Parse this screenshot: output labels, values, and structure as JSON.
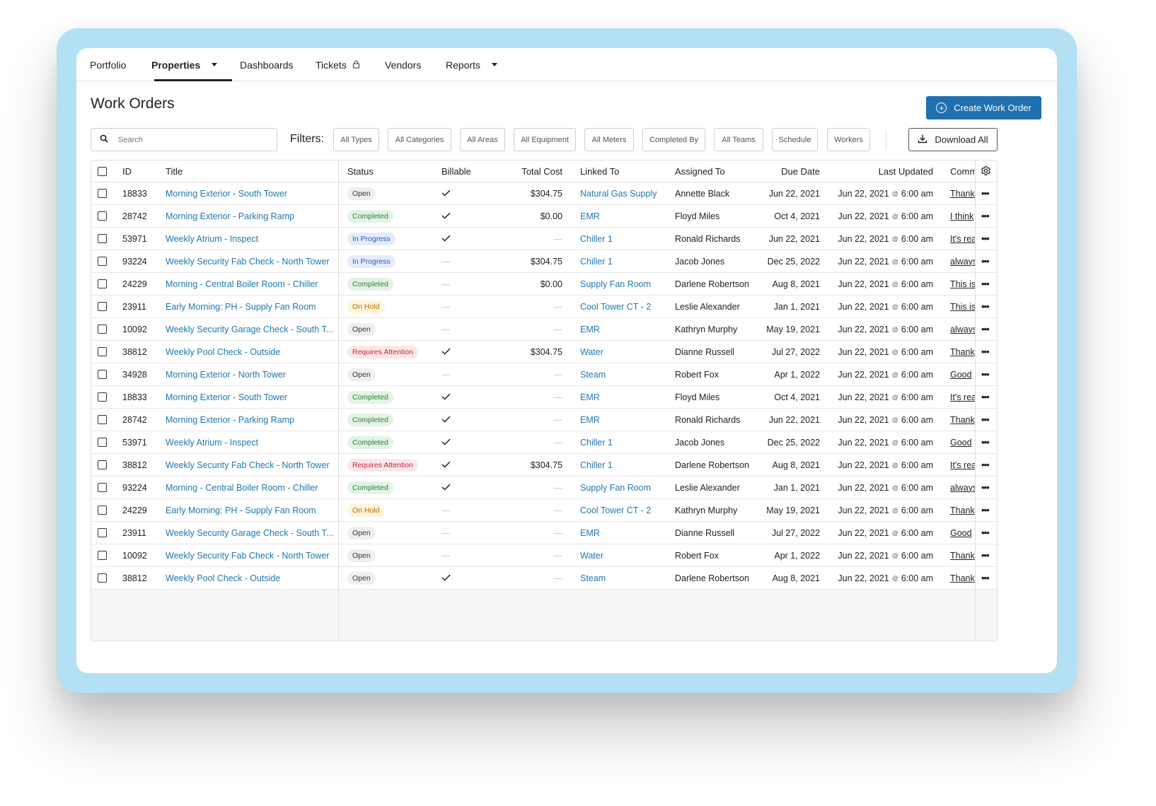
{
  "nav": {
    "items": [
      {
        "label": "Portfolio"
      },
      {
        "label": "Properties"
      },
      {
        "label": "Dashboards"
      },
      {
        "label": "Tickets"
      },
      {
        "label": "Vendors"
      },
      {
        "label": "Reports"
      }
    ],
    "active": "Properties"
  },
  "header": {
    "title": "Work Orders",
    "create_label": "Create Work Order"
  },
  "search": {
    "placeholder": "Search",
    "value": ""
  },
  "filters": {
    "label": "Filters:",
    "items": [
      "All Types",
      "All Categories",
      "All Areas",
      "All Equipment",
      "All Meters",
      "Completed By",
      "All Teams",
      "Schedule",
      "Workers"
    ],
    "download_label": "Download All"
  },
  "table": {
    "columns": [
      "ID",
      "Title",
      "Status",
      "Billable",
      "Total Cost",
      "Linked To",
      "Assigned To",
      "Due Date",
      "Last Updated",
      "Comm"
    ],
    "updated_at_symbol": "@",
    "rows": [
      {
        "id": "18833",
        "title": "Morning Exterior - South Tower",
        "status": "Open",
        "billable": true,
        "cost": "$304.75",
        "linked": "Natural Gas Supply",
        "assigned": "Annette Black",
        "due": "Jun 22, 2021",
        "upd_date": "Jun 22, 2021",
        "upd_time": "6:00 am",
        "comment": "Thank"
      },
      {
        "id": "28742",
        "title": "Morning Exterior - Parking Ramp",
        "status": "Completed",
        "billable": true,
        "cost": "$0.00",
        "linked": "EMR",
        "assigned": "Floyd Miles",
        "due": "Oct 4, 2021",
        "upd_date": "Jun 22, 2021",
        "upd_time": "6:00 am",
        "comment": "I think"
      },
      {
        "id": "53971",
        "title": "Weekly Atrium - Inspect",
        "status": "In Progress",
        "billable": true,
        "cost": "",
        "linked": "Chiller 1",
        "assigned": "Ronald Richards",
        "due": "Jun 22, 2021",
        "upd_date": "Jun 22, 2021",
        "upd_time": "6:00 am",
        "comment": "It's rea"
      },
      {
        "id": "93224",
        "title": "Weekly Security Fab Check - North Tower",
        "status": "In Progress",
        "billable": false,
        "cost": "$304.75",
        "linked": "Chiller 1",
        "assigned": "Jacob Jones",
        "due": "Dec 25, 2022",
        "upd_date": "Jun 22, 2021",
        "upd_time": "6:00 am",
        "comment": "always"
      },
      {
        "id": "24229",
        "title": "Morning - Central Boiler Room - Chiller",
        "status": "Completed",
        "billable": false,
        "cost": "$0.00",
        "linked": "Supply Fan Room",
        "assigned": "Darlene Robertson",
        "due": "Aug 8, 2021",
        "upd_date": "Jun 22, 2021",
        "upd_time": "6:00 am",
        "comment": "This is"
      },
      {
        "id": "23911",
        "title": "Early Morning: PH - Supply Fan Room",
        "status": "On Hold",
        "billable": false,
        "cost": "",
        "linked": "Cool Tower CT - 2",
        "assigned": "Leslie Alexander",
        "due": "Jan 1, 2021",
        "upd_date": "Jun 22, 2021",
        "upd_time": "6:00 am",
        "comment": "This is"
      },
      {
        "id": "10092",
        "title": "Weekly Security Garage Check - South T...",
        "status": "Open",
        "billable": false,
        "cost": "",
        "linked": "EMR",
        "assigned": "Kathryn Murphy",
        "due": "May 19, 2021",
        "upd_date": "Jun 22, 2021",
        "upd_time": "6:00 am",
        "comment": "always"
      },
      {
        "id": "38812",
        "title": "Weekly Pool Check - Outside",
        "status": "Requires Attention",
        "billable": true,
        "cost": "$304.75",
        "linked": "Water",
        "assigned": "Dianne Russell",
        "due": "Jul 27, 2022",
        "upd_date": "Jun 22, 2021",
        "upd_time": "6:00 am",
        "comment": "Thank"
      },
      {
        "id": "34928",
        "title": "Morning Exterior - North Tower",
        "status": "Open",
        "billable": false,
        "cost": "",
        "linked": "Steam",
        "assigned": "Robert Fox",
        "due": "Apr 1, 2022",
        "upd_date": "Jun 22, 2021",
        "upd_time": "6:00 am",
        "comment": "Good"
      },
      {
        "id": "18833",
        "title": "Morning Exterior - South Tower",
        "status": "Completed",
        "billable": true,
        "cost": "",
        "linked": "EMR",
        "assigned": "Floyd Miles",
        "due": "Oct 4, 2021",
        "upd_date": "Jun 22, 2021",
        "upd_time": "6:00 am",
        "comment": "It's rea"
      },
      {
        "id": "28742",
        "title": "Morning Exterior - Parking Ramp",
        "status": "Completed",
        "billable": true,
        "cost": "",
        "linked": "EMR",
        "assigned": "Ronald Richards",
        "due": "Jun 22, 2021",
        "upd_date": "Jun 22, 2021",
        "upd_time": "6:00 am",
        "comment": "Thank"
      },
      {
        "id": "53971",
        "title": "Weekly Atrium - Inspect",
        "status": "Completed",
        "billable": true,
        "cost": "",
        "linked": "Chiller 1",
        "assigned": "Jacob Jones",
        "due": "Dec 25, 2022",
        "upd_date": "Jun 22, 2021",
        "upd_time": "6:00 am",
        "comment": "Good"
      },
      {
        "id": "38812",
        "title": "Weekly Security Fab Check - North Tower",
        "status": "Requires Attention",
        "billable": true,
        "cost": "$304.75",
        "linked": "Chiller 1",
        "assigned": "Darlene Robertson",
        "due": "Aug 8, 2021",
        "upd_date": "Jun 22, 2021",
        "upd_time": "6:00 am",
        "comment": "It's rea"
      },
      {
        "id": "93224",
        "title": "Morning - Central Boiler Room - Chiller",
        "status": "Completed",
        "billable": true,
        "cost": "",
        "linked": "Supply Fan Room",
        "assigned": "Leslie Alexander",
        "due": "Jan 1, 2021",
        "upd_date": "Jun 22, 2021",
        "upd_time": "6:00 am",
        "comment": "always"
      },
      {
        "id": "24229",
        "title": "Early Morning: PH - Supply Fan Room",
        "status": "On Hold",
        "billable": false,
        "cost": "",
        "linked": "Cool Tower CT - 2",
        "assigned": "Kathryn Murphy",
        "due": "May 19, 2021",
        "upd_date": "Jun 22, 2021",
        "upd_time": "6:00 am",
        "comment": "Thank"
      },
      {
        "id": "23911",
        "title": "Weekly Security Garage Check - South T...",
        "status": "Open",
        "billable": false,
        "cost": "",
        "linked": "EMR",
        "assigned": "Dianne Russell",
        "due": "Jul 27, 2022",
        "upd_date": "Jun 22, 2021",
        "upd_time": "6:00 am",
        "comment": "Good"
      },
      {
        "id": "10092",
        "title": "Weekly Security Fab Check - North Tower",
        "status": "Open",
        "billable": false,
        "cost": "",
        "linked": "Water",
        "assigned": "Robert Fox",
        "due": "Apr 1, 2022",
        "upd_date": "Jun 22, 2021",
        "upd_time": "6:00 am",
        "comment": "Thank"
      },
      {
        "id": "38812",
        "title": "Weekly Pool Check - Outside",
        "status": "Open",
        "billable": true,
        "cost": "",
        "linked": "Steam",
        "assigned": "Darlene Robertson",
        "due": "Aug 8, 2021",
        "upd_date": "Jun 22, 2021",
        "upd_time": "6:00 am",
        "comment": "Thank"
      }
    ]
  },
  "status_colors": {
    "Open": {
      "bg": "#efefef",
      "fg": "#333333"
    },
    "Completed": {
      "bg": "#e3f4e6",
      "fg": "#2e7d3a"
    },
    "In Progress": {
      "bg": "#e5ecfb",
      "fg": "#2a5bb8"
    },
    "On Hold": {
      "bg": "#fff4dc",
      "fg": "#b76e00"
    },
    "Requires Attention": {
      "bg": "#fde7ea",
      "fg": "#c5233a"
    }
  },
  "colors": {
    "accent": "#1f70b0",
    "link": "#1f78ad",
    "frame": "#b3e0f3"
  },
  "icons": {
    "search": "search-icon",
    "lock": "lock-icon",
    "download": "download-icon",
    "settings": "gear-icon",
    "more": "more-icon",
    "plus": "plus-circle-icon"
  }
}
